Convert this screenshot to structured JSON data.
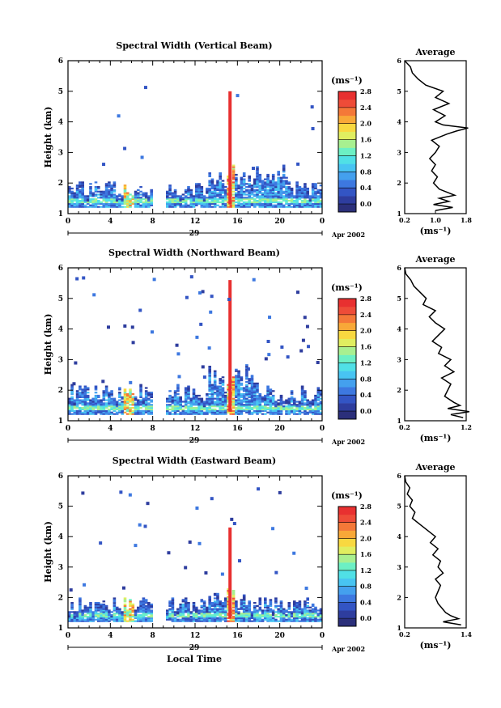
{
  "chart_data": [
    {
      "type": "heatmap",
      "title": "Spectral Width (Vertical Beam)",
      "ylabel": "Height (km)",
      "xticks": [
        "0",
        "4",
        "8",
        "12",
        "16",
        "20",
        "0"
      ],
      "yticks": [
        "1",
        "2",
        "3",
        "4",
        "5",
        "6"
      ],
      "date_marker": "29",
      "date_label": "Apr 2002",
      "colorbar": {
        "unit": "(ms⁻¹)",
        "tick_labels": [
          "0.0",
          "0.4",
          "0.8",
          "1.2",
          "1.6",
          "2.0",
          "2.4",
          "2.8"
        ],
        "colors": [
          "#2b2f7a",
          "#2e3d9e",
          "#3355c4",
          "#3d78e0",
          "#44a0ee",
          "#48c4f2",
          "#50e0e6",
          "#6cf0c4",
          "#a8f090",
          "#e0ee60",
          "#f8d840",
          "#f8a838",
          "#f47838",
          "#ee4c38",
          "#e83030"
        ]
      },
      "average": {
        "title": "Average",
        "xticks": [
          "0.2",
          "1.0",
          "1.8"
        ],
        "xlabel": "(ms⁻¹)",
        "yticks": [
          "1",
          "2",
          "3",
          "4",
          "5",
          "6"
        ],
        "xlim": [
          0.2,
          1.8
        ],
        "heights": [
          1.1,
          1.2,
          1.3,
          1.4,
          1.5,
          1.6,
          1.8,
          2.0,
          2.2,
          2.4,
          2.6,
          2.8,
          3.0,
          3.2,
          3.4,
          3.6,
          3.7,
          3.8,
          3.9,
          4.0,
          4.2,
          4.4,
          4.6,
          4.8,
          5.0,
          5.2,
          5.4,
          5.6,
          5.8,
          6.0
        ],
        "values": [
          1.0,
          1.45,
          0.95,
          1.35,
          1.1,
          1.5,
          1.1,
          0.95,
          1.05,
          0.9,
          1.0,
          0.85,
          1.0,
          1.1,
          0.9,
          1.3,
          1.55,
          1.85,
          1.2,
          1.0,
          1.25,
          0.95,
          1.35,
          1.0,
          1.2,
          0.75,
          0.55,
          0.4,
          0.35,
          0.2
        ]
      }
    },
    {
      "type": "heatmap",
      "title": "Spectral Width (Northward Beam)",
      "ylabel": "Height (km)",
      "xticks": [
        "0",
        "4",
        "8",
        "12",
        "16",
        "20",
        "0"
      ],
      "yticks": [
        "1",
        "2",
        "3",
        "4",
        "5",
        "6"
      ],
      "date_marker": "29",
      "date_label": "Apr 2002",
      "colorbar": {
        "unit": "(ms⁻¹)",
        "tick_labels": [
          "0.0",
          "0.4",
          "0.8",
          "1.2",
          "1.6",
          "2.0",
          "2.4",
          "2.8"
        ],
        "colors": [
          "#2b2f7a",
          "#2e3d9e",
          "#3355c4",
          "#3d78e0",
          "#44a0ee",
          "#48c4f2",
          "#50e0e6",
          "#6cf0c4",
          "#a8f090",
          "#e0ee60",
          "#f8d840",
          "#f8a838",
          "#f47838",
          "#ee4c38",
          "#e83030"
        ]
      },
      "average": {
        "title": "Average",
        "xticks": [
          "0.2",
          "1.2"
        ],
        "xlabel": "(ms⁻¹)",
        "yticks": [
          "1",
          "2",
          "3",
          "4",
          "5",
          "6"
        ],
        "xlim": [
          0.2,
          1.2
        ],
        "heights": [
          1.1,
          1.2,
          1.3,
          1.4,
          1.5,
          1.6,
          1.8,
          2.0,
          2.2,
          2.4,
          2.6,
          2.8,
          3.0,
          3.2,
          3.4,
          3.6,
          3.8,
          4.0,
          4.2,
          4.4,
          4.6,
          4.8,
          5.0,
          5.2,
          5.4,
          5.6,
          5.8,
          6.0
        ],
        "values": [
          1.15,
          0.95,
          1.25,
          0.9,
          1.1,
          1.0,
          0.85,
          0.9,
          0.95,
          0.8,
          1.0,
          0.85,
          0.95,
          0.75,
          0.8,
          0.65,
          0.75,
          0.85,
          0.7,
          0.6,
          0.7,
          0.5,
          0.55,
          0.45,
          0.35,
          0.3,
          0.22,
          0.2
        ]
      }
    },
    {
      "type": "heatmap",
      "title": "Spectral Width (Eastward Beam)",
      "ylabel": "Height (km)",
      "xticks": [
        "0",
        "4",
        "8",
        "12",
        "16",
        "20",
        "0"
      ],
      "yticks": [
        "1",
        "2",
        "3",
        "4",
        "5",
        "6"
      ],
      "date_marker": "29",
      "date_label": "Apr 2002",
      "xlabel": "Local Time",
      "colorbar": {
        "unit": "(ms⁻¹)",
        "tick_labels": [
          "0.0",
          "0.4",
          "0.8",
          "1.2",
          "1.6",
          "2.0",
          "2.4",
          "2.8"
        ],
        "colors": [
          "#2b2f7a",
          "#2e3d9e",
          "#3355c4",
          "#3d78e0",
          "#44a0ee",
          "#48c4f2",
          "#50e0e6",
          "#6cf0c4",
          "#a8f090",
          "#e0ee60",
          "#f8d840",
          "#f8a838",
          "#f47838",
          "#ee4c38",
          "#e83030"
        ]
      },
      "average": {
        "title": "Average",
        "xticks": [
          "0.2",
          "1.4"
        ],
        "xlabel": "(ms⁻¹)",
        "yticks": [
          "1",
          "2",
          "3",
          "4",
          "5",
          "6"
        ],
        "xlim": [
          0.2,
          1.4
        ],
        "heights": [
          1.1,
          1.2,
          1.3,
          1.4,
          1.5,
          1.6,
          1.8,
          2.0,
          2.2,
          2.4,
          2.6,
          2.8,
          3.0,
          3.2,
          3.4,
          3.6,
          3.8,
          4.0,
          4.2,
          4.4,
          4.6,
          4.8,
          5.0,
          5.2,
          5.4,
          5.6,
          5.8,
          6.0
        ],
        "values": [
          1.3,
          0.95,
          1.25,
          1.1,
          1.0,
          0.95,
          0.85,
          0.8,
          0.85,
          0.9,
          0.8,
          0.95,
          0.85,
          0.9,
          0.75,
          0.85,
          0.7,
          0.8,
          0.65,
          0.5,
          0.35,
          0.4,
          0.3,
          0.35,
          0.25,
          0.3,
          0.22,
          0.2
        ]
      }
    }
  ]
}
